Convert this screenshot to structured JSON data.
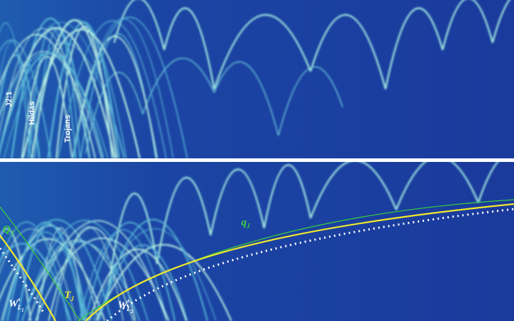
{
  "labels": {
    "j21": "J2:1",
    "hildas": "Hildas",
    "trojans": "Trojans",
    "qbig": {
      "base": "Q",
      "sub": "J"
    },
    "qsmall": {
      "base": "q",
      "sub": "J"
    },
    "tj": {
      "base": "T",
      "sub": "J"
    },
    "wl1": {
      "base": "W",
      "sup": "s",
      "sub": "L",
      "subsub": "1"
    },
    "wl2": {
      "base": "W",
      "sup": "s",
      "sub": "L",
      "subsub": "2"
    }
  }
}
